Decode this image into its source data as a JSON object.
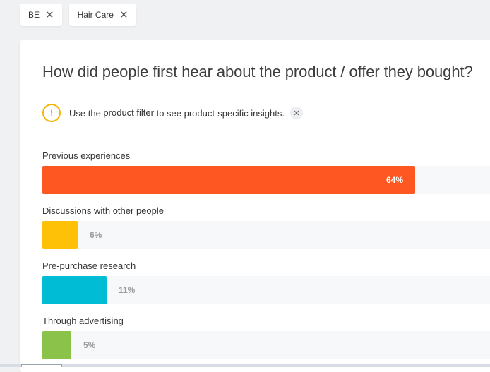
{
  "filters": [
    {
      "label": "BE",
      "remove_icon": "close-icon"
    },
    {
      "label": "Hair Care",
      "remove_icon": "close-icon"
    }
  ],
  "card": {
    "question": "How did people first hear about the product / offer they bought?",
    "notice": {
      "icon": "warning-icon",
      "prefix": "Use the ",
      "link_text": "product filter",
      "suffix": " to see product-specific insights.",
      "dismiss_icon": "close-icon"
    }
  },
  "chart_data": {
    "type": "bar",
    "orientation": "horizontal",
    "categories": [
      "Previous experiences",
      "Discussions with other people",
      "Pre-purchase research",
      "Through advertising"
    ],
    "values": [
      64,
      6,
      11,
      5
    ],
    "value_labels": [
      "64%",
      "6%",
      "11%",
      "5%"
    ],
    "colors": [
      "#ff5722",
      "#ffc107",
      "#00bcd4",
      "#8bc34a"
    ],
    "unit": "%",
    "xlim": [
      0,
      100
    ]
  },
  "colors": {
    "accent_warning": "#f5b400",
    "track": "#f7f8f9"
  }
}
